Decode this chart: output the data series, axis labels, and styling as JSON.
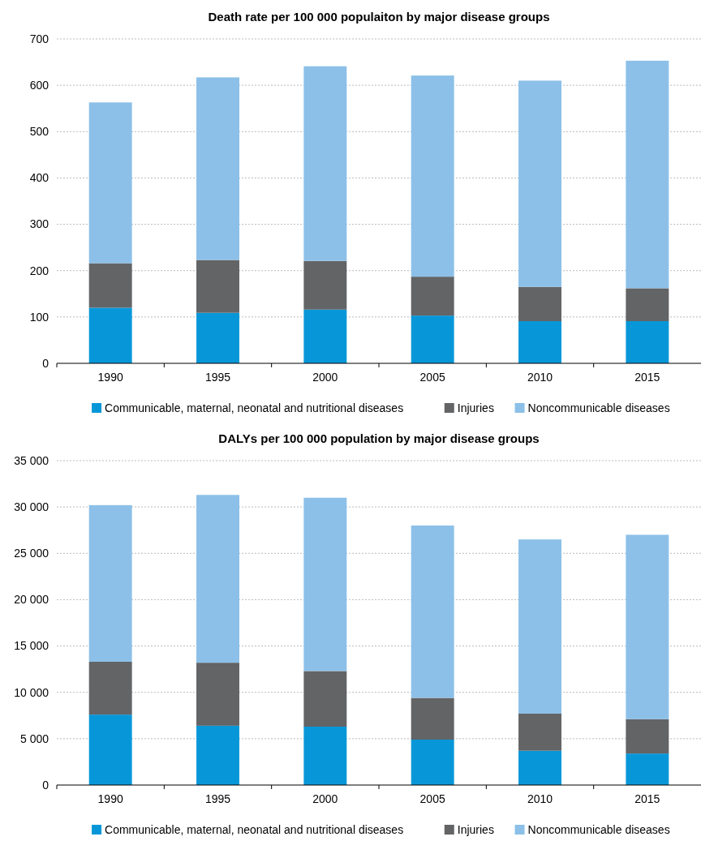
{
  "chart_data": [
    {
      "type": "bar",
      "title": "Death rate per 100 000 populaiton by major disease groups",
      "categories": [
        "1990",
        "1995",
        "2000",
        "2005",
        "2010",
        "2015"
      ],
      "stacked": true,
      "series": [
        {
          "name": "Communicable, maternal, neonatal and nutritional diseases",
          "color": "#0797d8",
          "values": [
            120,
            109,
            116,
            103,
            91,
            91
          ]
        },
        {
          "name": "Injuries",
          "color": "#636466",
          "values": [
            96,
            114,
            105,
            84,
            74,
            71
          ]
        },
        {
          "name": "Noncommunicable diseases",
          "color": "#8cc0e8",
          "values": [
            347,
            394,
            420,
            434,
            445,
            491
          ]
        }
      ],
      "ylim": [
        0,
        700
      ],
      "yticks": [
        0,
        100,
        200,
        300,
        400,
        500,
        600,
        700
      ],
      "grid": "y",
      "legend": "bottom"
    },
    {
      "type": "bar",
      "title": "DALYs per 100 000 population by major disease groups",
      "categories": [
        "1990",
        "1995",
        "2000",
        "2005",
        "2010",
        "2015"
      ],
      "stacked": true,
      "series": [
        {
          "name": "Communicable, maternal, neonatal and nutritional diseases",
          "color": "#0797d8",
          "values": [
            7600,
            6400,
            6300,
            4900,
            3700,
            3400
          ]
        },
        {
          "name": "Injuries",
          "color": "#636466",
          "values": [
            5700,
            6800,
            6000,
            4500,
            4000,
            3700
          ]
        },
        {
          "name": "Noncommunicable diseases",
          "color": "#8cc0e8",
          "values": [
            16900,
            18100,
            18700,
            18600,
            18800,
            19900
          ]
        }
      ],
      "ylim": [
        0,
        35000
      ],
      "yticks": [
        0,
        {
          "value": 5000,
          "label": "5 000"
        },
        {
          "value": 10000,
          "label": "10 000"
        },
        {
          "value": 15000,
          "label": "15 000"
        },
        {
          "value": 20000,
          "label": "20 000"
        },
        {
          "value": 25000,
          "label": "25 000"
        },
        {
          "value": 30000,
          "label": "30 000"
        },
        {
          "value": 35000,
          "label": "35 000"
        }
      ],
      "grid": "y",
      "legend": "bottom"
    }
  ]
}
